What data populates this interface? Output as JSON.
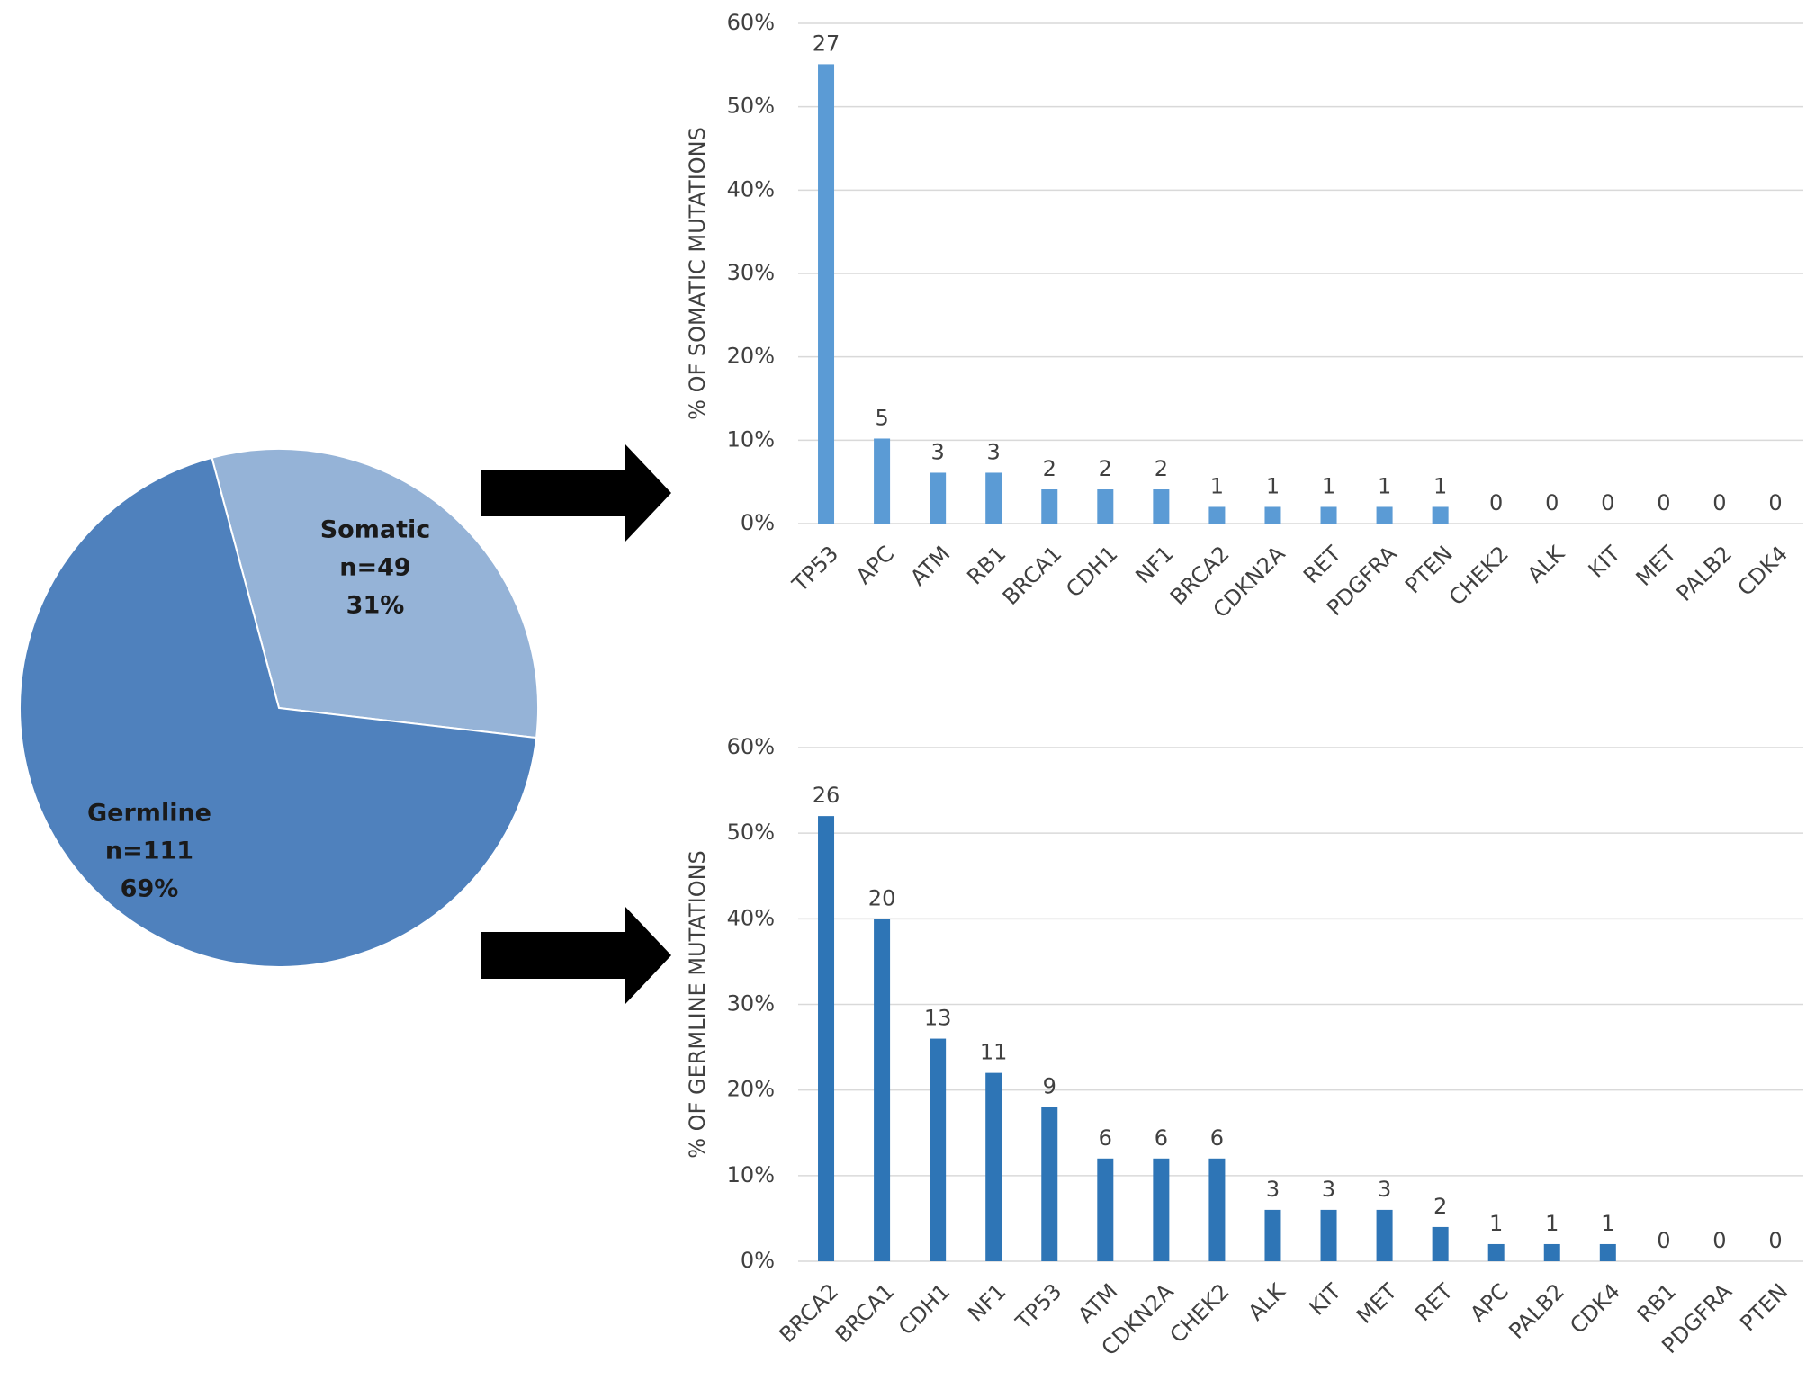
{
  "chart_data": [
    {
      "type": "pie",
      "categories": [
        "Somatic",
        "Germline"
      ],
      "counts": [
        "n=49",
        "n=111"
      ],
      "values": [
        31,
        69
      ],
      "value_labels": [
        "31%",
        "69%"
      ],
      "colors": [
        "#95b3d7",
        "#4f81bd"
      ]
    },
    {
      "type": "bar",
      "y_label": "% OF SOMATIC MUTATIONS",
      "categories": [
        "TP53",
        "APC",
        "ATM",
        "RB1",
        "BRCA1",
        "CDH1",
        "NF1",
        "BRCA2",
        "CDKN2A",
        "RET",
        "PDGFRA",
        "PTEN",
        "CHEK2",
        "ALK",
        "KIT",
        "MET",
        "PALB2",
        "CDK4"
      ],
      "values": [
        55.1,
        10.2,
        6.1,
        6.1,
        4.1,
        4.1,
        4.1,
        2.0,
        2.0,
        2.0,
        2.0,
        2.0,
        0,
        0,
        0,
        0,
        0,
        0
      ],
      "counts": [
        27,
        5,
        3,
        3,
        2,
        2,
        2,
        1,
        1,
        1,
        1,
        1,
        0,
        0,
        0,
        0,
        0,
        0
      ],
      "color": "#5b9bd5",
      "ylim": [
        0,
        60
      ],
      "yticks": [
        {
          "value": 0,
          "label": "0%"
        },
        {
          "value": 10,
          "label": "10%"
        },
        {
          "value": 20,
          "label": "20%"
        },
        {
          "value": 30,
          "label": "30%"
        },
        {
          "value": 40,
          "label": "40%"
        },
        {
          "value": 50,
          "label": "50%"
        },
        {
          "value": 60,
          "label": "60%"
        }
      ],
      "grid": true
    },
    {
      "type": "bar",
      "y_label": "% OF GERMLINE MUTATIONS",
      "categories": [
        "BRCA2",
        "BRCA1",
        "CDH1",
        "NF1",
        "TP53",
        "ATM",
        "CDKN2A",
        "CHEK2",
        "ALK",
        "KIT",
        "MET",
        "RET",
        "APC",
        "PALB2",
        "CDK4",
        "RB1",
        "PDGFRA",
        "PTEN"
      ],
      "values": [
        52,
        40,
        26,
        22,
        18,
        12,
        12,
        12,
        6,
        6,
        6,
        4,
        2,
        2,
        2,
        0,
        0,
        0
      ],
      "counts": [
        26,
        20,
        13,
        11,
        9,
        6,
        6,
        6,
        3,
        3,
        3,
        2,
        1,
        1,
        1,
        0,
        0,
        0
      ],
      "color": "#2e75b6",
      "ylim": [
        0,
        60
      ],
      "yticks": [
        {
          "value": 0,
          "label": "0%"
        },
        {
          "value": 10,
          "label": "10%"
        },
        {
          "value": 20,
          "label": "20%"
        },
        {
          "value": 30,
          "label": "30%"
        },
        {
          "value": 40,
          "label": "40%"
        },
        {
          "value": 50,
          "label": "50%"
        },
        {
          "value": 60,
          "label": "60%"
        }
      ],
      "grid": true
    }
  ]
}
